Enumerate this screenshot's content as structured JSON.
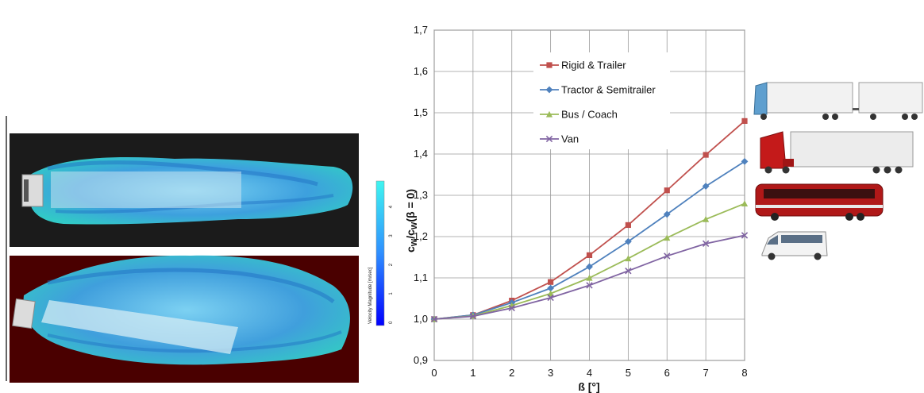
{
  "colorbar": {
    "label": "Velocity Magnitude [m/sec]",
    "ticks": [
      "0",
      "1",
      "2",
      "3",
      "4"
    ]
  },
  "chart_data": {
    "type": "line",
    "xlabel": "ß [°]",
    "ylabel_main": "c",
    "ylabel_sub1": "W",
    "ylabel_mid": "/c",
    "ylabel_sub2": "W",
    "ylabel_tail": "(β = 0)",
    "x": [
      0,
      1,
      2,
      3,
      4,
      5,
      6,
      7,
      8
    ],
    "xticks": [
      "0",
      "1",
      "2",
      "3",
      "4",
      "5",
      "6",
      "7",
      "8"
    ],
    "yticks": [
      "0,9",
      "1,0",
      "1,1",
      "1,2",
      "1,3",
      "1,4",
      "1,5",
      "1,6",
      "1,7"
    ],
    "xlim": [
      0,
      8
    ],
    "ylim": [
      0.9,
      1.7
    ],
    "grid": true,
    "legend_position": "top-left",
    "series": [
      {
        "name": "Rigid & Trailer",
        "color": "#c0504d",
        "marker": "square",
        "values": [
          1.0,
          1.01,
          1.045,
          1.09,
          1.155,
          1.228,
          1.312,
          1.398,
          1.48
        ]
      },
      {
        "name": "Tractor & Semitrailer",
        "color": "#4f81bd",
        "marker": "diamond",
        "values": [
          1.0,
          1.01,
          1.04,
          1.075,
          1.127,
          1.188,
          1.254,
          1.322,
          1.382
        ]
      },
      {
        "name": "Bus / Coach",
        "color": "#9bbb59",
        "marker": "triangle",
        "values": [
          1.0,
          1.008,
          1.033,
          1.062,
          1.1,
          1.147,
          1.197,
          1.242,
          1.28
        ]
      },
      {
        "name": "Van",
        "color": "#8064a2",
        "marker": "cross",
        "values": [
          1.0,
          1.007,
          1.027,
          1.052,
          1.082,
          1.117,
          1.153,
          1.183,
          1.203
        ]
      }
    ]
  }
}
